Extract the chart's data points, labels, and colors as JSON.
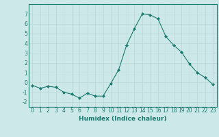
{
  "x": [
    0,
    1,
    2,
    3,
    4,
    5,
    6,
    7,
    8,
    9,
    10,
    11,
    12,
    13,
    14,
    15,
    16,
    17,
    18,
    19,
    20,
    21,
    22,
    23
  ],
  "y": [
    -0.3,
    -0.6,
    -0.4,
    -0.5,
    -1.0,
    -1.2,
    -1.6,
    -1.1,
    -1.4,
    -1.4,
    -0.1,
    1.3,
    3.8,
    5.5,
    7.0,
    6.9,
    6.5,
    4.7,
    3.8,
    3.1,
    1.9,
    1.0,
    0.5,
    -0.2
  ],
  "line_color": "#1a7a6e",
  "marker": "D",
  "marker_size": 2.0,
  "bg_color": "#cce8e8",
  "grid_color": "#b8d8d8",
  "xlabel": "Humidex (Indice chaleur)",
  "ylim": [
    -2.5,
    8.0
  ],
  "xlim": [
    -0.5,
    23.5
  ],
  "yticks": [
    -2,
    -1,
    0,
    1,
    2,
    3,
    4,
    5,
    6,
    7
  ],
  "xticks": [
    0,
    1,
    2,
    3,
    4,
    5,
    6,
    7,
    8,
    9,
    10,
    11,
    12,
    13,
    14,
    15,
    16,
    17,
    18,
    19,
    20,
    21,
    22,
    23
  ],
  "tick_color": "#1a7a6e",
  "label_color": "#1a7a6e",
  "spine_color": "#1a7a6e",
  "tick_fontsize": 5.5,
  "xlabel_fontsize": 6.5
}
